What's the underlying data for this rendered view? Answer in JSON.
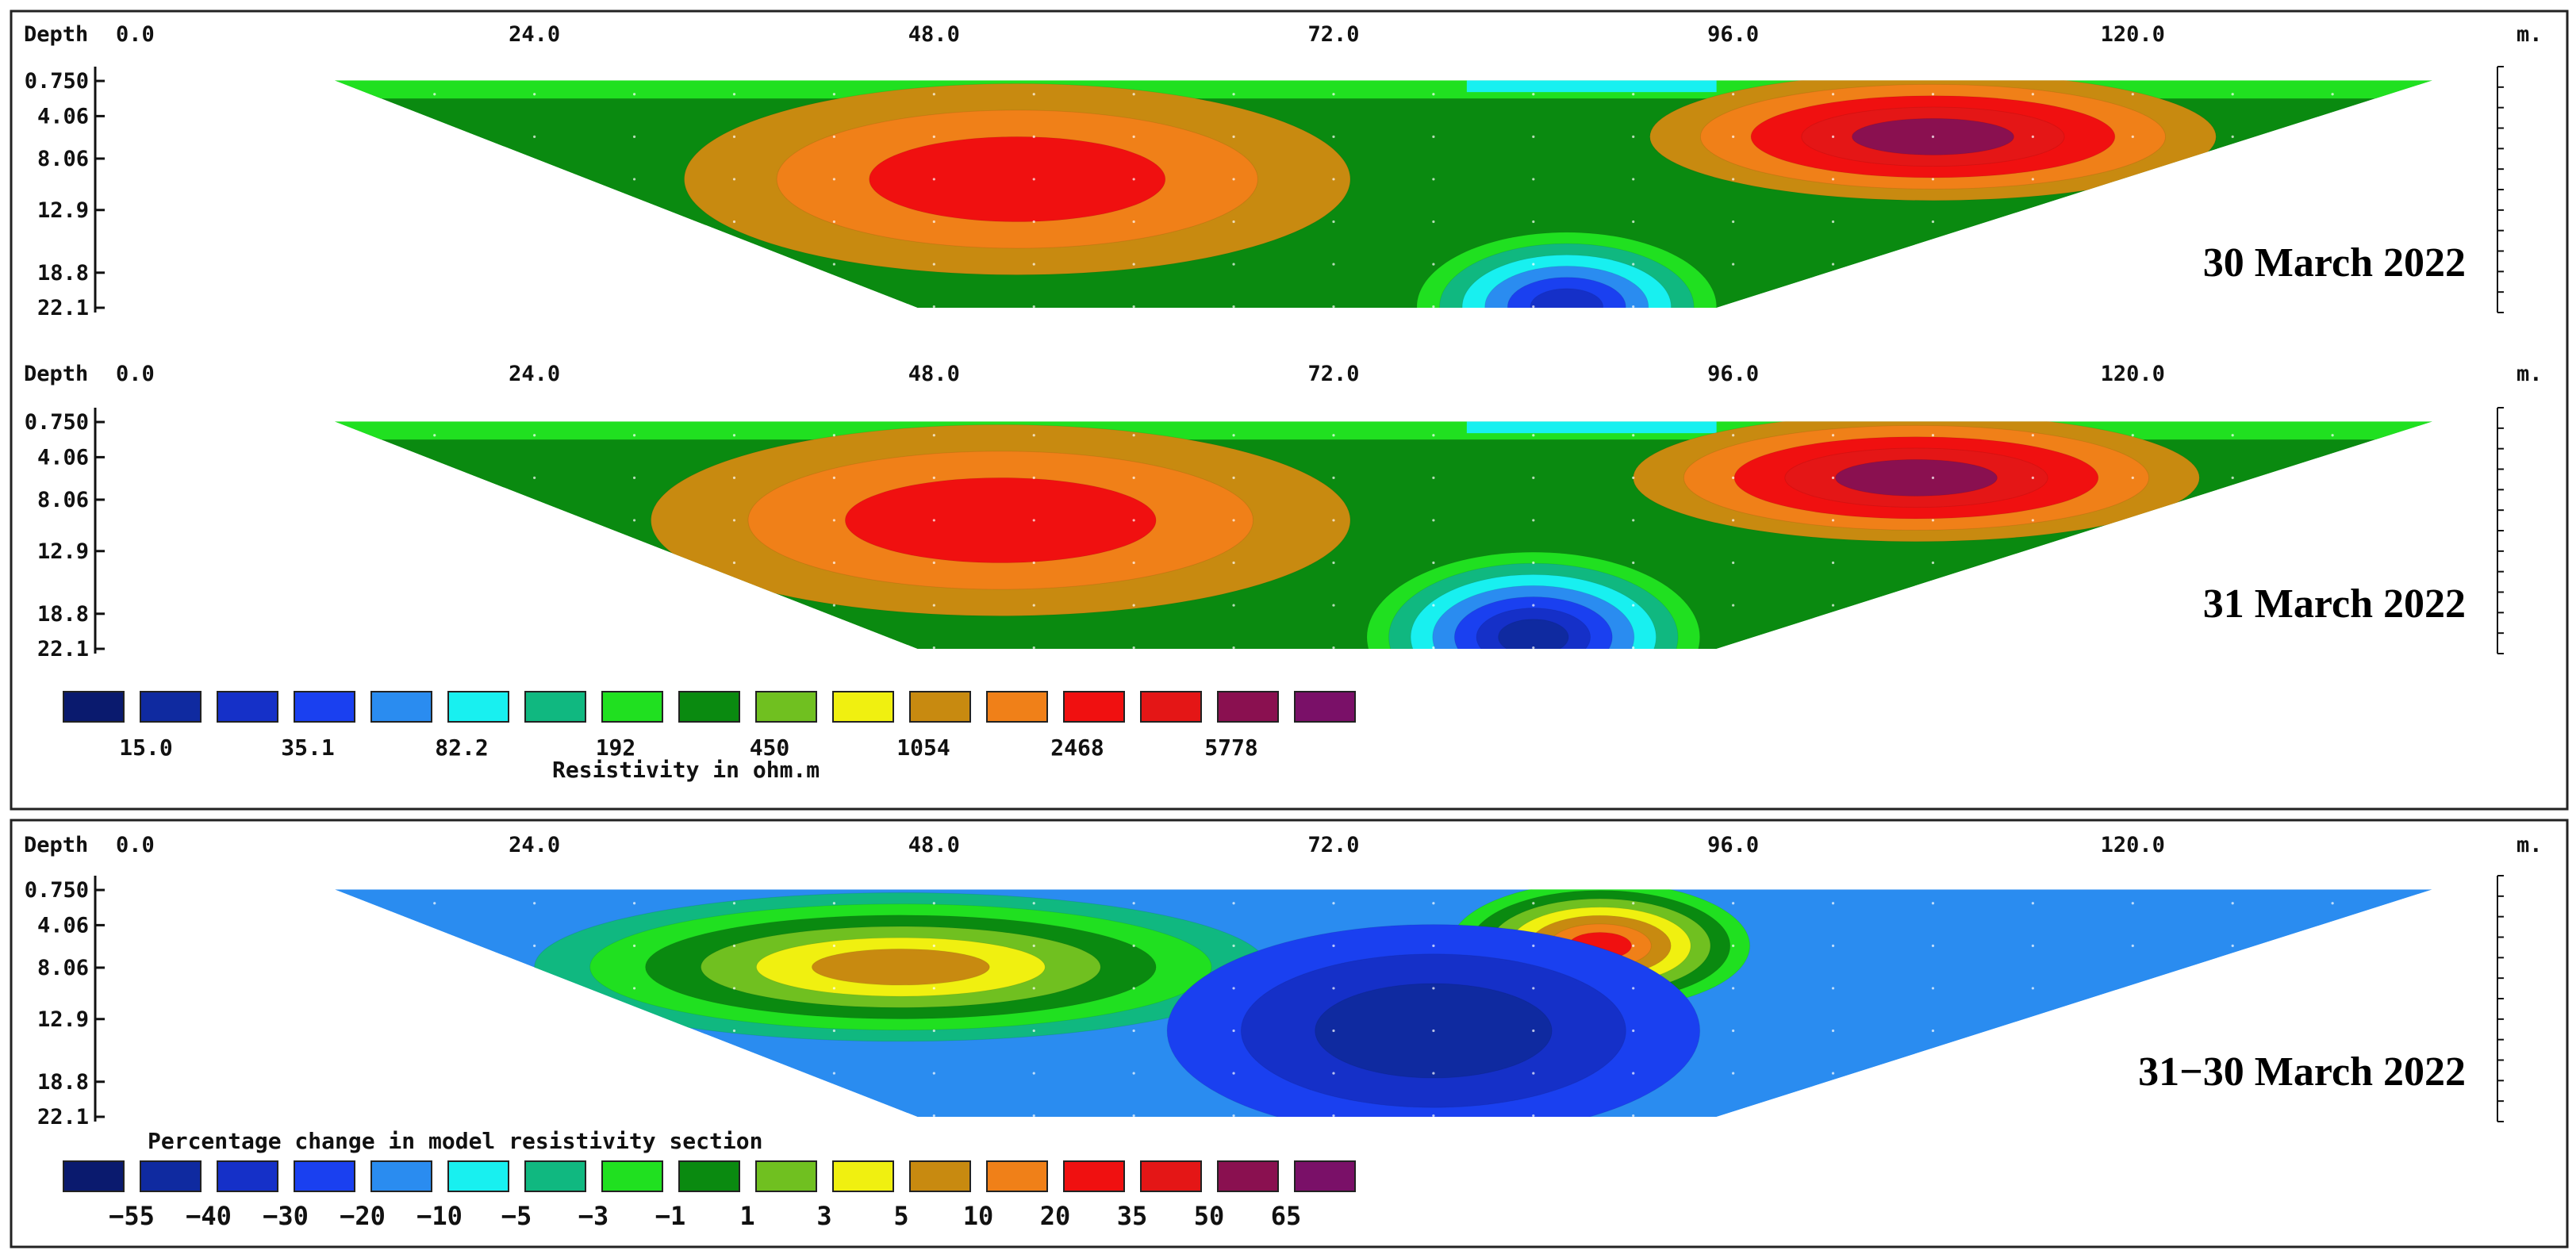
{
  "chart_data": [
    {
      "type": "heatmap",
      "title": "30 March 2022",
      "x_header": "Depth",
      "x_unit": "m.",
      "x_ticks": [
        "0.0",
        "24.0",
        "48.0",
        "72.0",
        "96.0",
        "120.0"
      ],
      "xlim": [
        0,
        140
      ],
      "y_ticks": [
        "0.750",
        "4.06",
        "8.06",
        "12.9",
        "18.8",
        "22.1"
      ],
      "ylim": [
        0,
        22.1
      ],
      "section_x_extent": [
        12.0,
        138.0
      ],
      "color_scale": "resistivity",
      "features": [
        {
          "cx": 53,
          "cy": 10,
          "rx": 20,
          "ry": 9,
          "levels": [
            11,
            12,
            13
          ]
        },
        {
          "cx": 108,
          "cy": 6,
          "rx": 17,
          "ry": 6,
          "levels": [
            11,
            12,
            13,
            14,
            15
          ]
        },
        {
          "cx": 86,
          "cy": 22,
          "rx": 9,
          "ry": 7,
          "levels": [
            7,
            6,
            5,
            4,
            3,
            2
          ]
        }
      ]
    },
    {
      "type": "heatmap",
      "title": "31 March 2022",
      "x_header": "Depth",
      "x_unit": "m.",
      "x_ticks": [
        "0.0",
        "24.0",
        "48.0",
        "72.0",
        "96.0",
        "120.0"
      ],
      "xlim": [
        0,
        140
      ],
      "y_ticks": [
        "0.750",
        "4.06",
        "8.06",
        "12.9",
        "18.8",
        "22.1"
      ],
      "ylim": [
        0,
        22.1
      ],
      "section_x_extent": [
        12.0,
        138.0
      ],
      "color_scale": "resistivity",
      "features": [
        {
          "cx": 52,
          "cy": 10,
          "rx": 21,
          "ry": 9,
          "levels": [
            11,
            12,
            13
          ]
        },
        {
          "cx": 107,
          "cy": 6,
          "rx": 17,
          "ry": 6,
          "levels": [
            11,
            12,
            13,
            14,
            15
          ]
        },
        {
          "cx": 84,
          "cy": 21,
          "rx": 10,
          "ry": 8,
          "levels": [
            7,
            6,
            5,
            4,
            3,
            2,
            1
          ]
        }
      ]
    },
    {
      "type": "heatmap",
      "title": "31−30 March 2022",
      "x_header": "Depth",
      "x_unit": "m.",
      "x_ticks": [
        "0.0",
        "24.0",
        "48.0",
        "72.0",
        "96.0",
        "120.0"
      ],
      "xlim": [
        0,
        140
      ],
      "y_ticks": [
        "0.750",
        "4.06",
        "8.06",
        "12.9",
        "18.8",
        "22.1"
      ],
      "ylim": [
        0,
        22.1
      ],
      "section_x_extent": [
        12.0,
        138.0
      ],
      "color_scale": "percentage_change",
      "features": [
        {
          "cx": 46,
          "cy": 8,
          "rx": 22,
          "ry": 7,
          "levels": [
            6,
            7,
            8,
            9,
            10,
            11
          ]
        },
        {
          "cx": 88,
          "cy": 6,
          "rx": 9,
          "ry": 6,
          "levels": [
            7,
            8,
            9,
            10,
            11,
            12,
            13
          ]
        },
        {
          "cx": 78,
          "cy": 14,
          "rx": 16,
          "ry": 10,
          "levels": [
            3,
            2,
            1
          ]
        }
      ]
    }
  ],
  "legends": {
    "resistivity": {
      "colors": [
        "#0a1a6e",
        "#0f2aa0",
        "#1530c8",
        "#1a40f0",
        "#2a8cf0",
        "#18f0f0",
        "#10b880",
        "#20e020",
        "#0a8a10",
        "#70c020",
        "#f0f010",
        "#c88a10",
        "#f08018",
        "#f01010",
        "#e41616",
        "#8a1050",
        "#7a1068"
      ],
      "labels": [
        "15.0",
        "35.1",
        "82.2",
        "192",
        "450",
        "1054",
        "2468",
        "5778"
      ],
      "title": "Resistivity in ohm.m"
    },
    "percentage_change": {
      "colors": [
        "#0a1a6e",
        "#0f2aa0",
        "#1530c8",
        "#1a40f0",
        "#2a8cf0",
        "#18f0f0",
        "#10b880",
        "#20e020",
        "#0a8a10",
        "#70c020",
        "#f0f010",
        "#c88a10",
        "#f08018",
        "#f01010",
        "#e41616",
        "#8a1050",
        "#7a1068"
      ],
      "labels": [
        "−55",
        "−40",
        "−30",
        "−20",
        "−10",
        "−5",
        "−3",
        "−1",
        "1",
        "3",
        "5",
        "10",
        "20",
        "35",
        "50",
        "65"
      ],
      "title": "Percentage change in model resistivity section"
    }
  },
  "colors": {
    "background": "#15a818",
    "text": "#111111",
    "frame": "#222222"
  }
}
